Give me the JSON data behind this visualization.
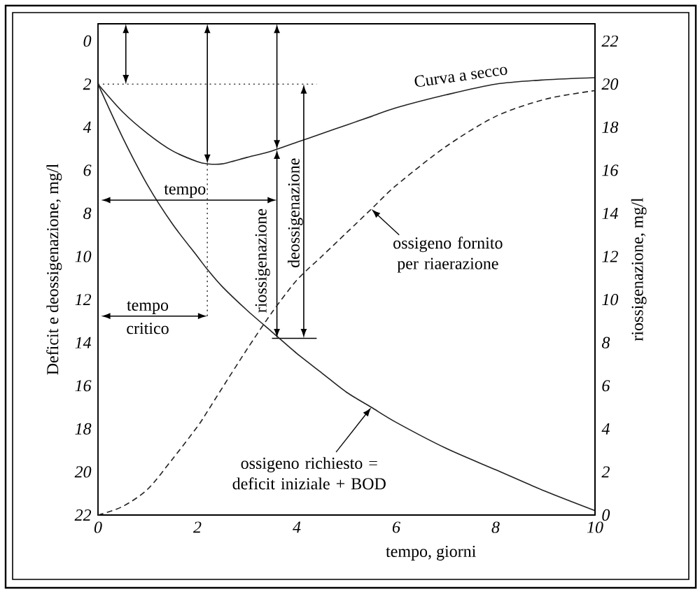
{
  "chart_data": {
    "type": "line",
    "xlabel": "tempo, giorni",
    "ylabel": "Deficit e deossigenazione, mg/l",
    "y2label": "riossigenazione, mg/l",
    "x": [
      0,
      0.5,
      1,
      1.5,
      2,
      2.2,
      2.5,
      3,
      3.5,
      4,
      4.5,
      5,
      5.5,
      6,
      7,
      8,
      9,
      10
    ],
    "series": [
      {
        "name": "Curva a secco",
        "color": "#222222",
        "values": [
          2,
          3.3,
          4.3,
          5.1,
          5.6,
          5.7,
          5.7,
          5.4,
          5.1,
          4.7,
          4.3,
          3.9,
          3.5,
          3.1,
          2.5,
          2.0,
          1.8,
          1.7
        ]
      },
      {
        "name": "ossigeno richiesto = deficit iniziale + BOD",
        "color": "#222222",
        "values": [
          2,
          4.5,
          6.7,
          8.5,
          10.0,
          10.6,
          11.4,
          12.5,
          13.5,
          14.5,
          15.4,
          16.3,
          17.0,
          17.7,
          18.9,
          19.9,
          20.9,
          21.8
        ]
      },
      {
        "name": "ossigeno fornito per riaerazione",
        "color": "#222222",
        "axis": "y2",
        "line_style": "dashed",
        "values": [
          0,
          0.4,
          1.2,
          2.6,
          4.1,
          4.8,
          5.9,
          7.7,
          9.4,
          10.9,
          12.0,
          13.1,
          14.2,
          15.3,
          17.1,
          18.5,
          19.3,
          19.7
        ]
      }
    ],
    "xlim": [
      0,
      10
    ],
    "xticks": [
      0,
      2,
      4,
      6,
      8,
      10
    ],
    "ylim": [
      22,
      -0.8
    ],
    "yticks": [
      0,
      2,
      4,
      6,
      8,
      10,
      12,
      14,
      16,
      18,
      20,
      22
    ],
    "y2lim": [
      0,
      22.8
    ],
    "y2ticks": [
      0,
      2,
      4,
      6,
      8,
      10,
      12,
      14,
      16,
      18,
      20,
      22
    ],
    "ref_lines": [
      {
        "axis": "y",
        "value": 2,
        "color": "#444444",
        "line_style": "dotted"
      },
      {
        "axis": "x",
        "value": 2.2,
        "color": "#444444",
        "line_style": "dotted"
      },
      {
        "axis": "y",
        "value": 13.8,
        "color": "#000000",
        "line_style": "solid"
      }
    ],
    "annotations": [
      "tempo",
      "tempo critico",
      {
        "text": "riossigenazione",
        "x": 3.6,
        "y": 13.8
      },
      "deossigenazione"
    ]
  }
}
